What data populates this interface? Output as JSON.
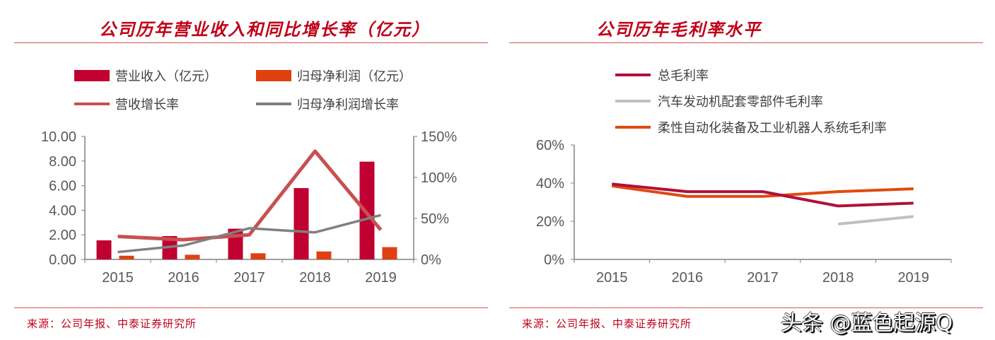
{
  "left_panel": {
    "title": "公司历年营业收入和同比增长率（亿元）",
    "source": "来源：公司年报、中泰证券研究所"
  },
  "right_panel": {
    "title": "公司历年毛利率水平",
    "source": "来源：公司年报、中泰证券研究所"
  },
  "watermark": "头条 @蓝色起源Q",
  "chart_data": [
    {
      "type": "bar",
      "categories": [
        "2015",
        "2016",
        "2017",
        "2018",
        "2019"
      ],
      "y_ticks": [
        "0.00",
        "2.00",
        "4.00",
        "6.00",
        "8.00",
        "10.00"
      ],
      "y2_ticks": [
        "0%",
        "50%",
        "100%",
        "150%"
      ],
      "ylim": [
        0,
        10
      ],
      "y2lim": [
        0,
        150
      ],
      "grid": false,
      "legend_position": "top",
      "series": [
        {
          "name": "营业收入（亿元）",
          "kind": "bar",
          "axis": "left",
          "color": "#c00030",
          "values": [
            1.55,
            1.9,
            2.5,
            5.8,
            7.95
          ]
        },
        {
          "name": "归母净利润（亿元）",
          "kind": "bar",
          "axis": "left",
          "color": "#e04010",
          "values": [
            0.3,
            0.38,
            0.5,
            0.65,
            1.0
          ]
        },
        {
          "name": "营收增长率",
          "kind": "line",
          "axis": "right",
          "color": "#c85050",
          "values": [
            28,
            24,
            30,
            132,
            36
          ]
        },
        {
          "name": "归母净利润增长率",
          "kind": "line",
          "axis": "right",
          "color": "#808080",
          "values": [
            9,
            17,
            38,
            33,
            54
          ]
        }
      ]
    },
    {
      "type": "line",
      "categories": [
        "2015",
        "2016",
        "2017",
        "2018",
        "2019"
      ],
      "y_ticks": [
        "0%",
        "20%",
        "40%",
        "60%"
      ],
      "ylim": [
        0,
        60
      ],
      "grid": false,
      "legend_position": "top",
      "series": [
        {
          "name": "总毛利率",
          "color": "#b0103a",
          "values": [
            39.5,
            35.5,
            35.5,
            28,
            29.5
          ]
        },
        {
          "name": "汽车发动机配套零部件毛利率",
          "color": "#c0c0c0",
          "values": [
            null,
            null,
            null,
            18.5,
            22.5
          ]
        },
        {
          "name": "柔性自动化装备及工业机器人系统毛利率",
          "color": "#e04a10",
          "values": [
            38.5,
            33,
            33,
            35.5,
            37
          ]
        }
      ]
    }
  ]
}
